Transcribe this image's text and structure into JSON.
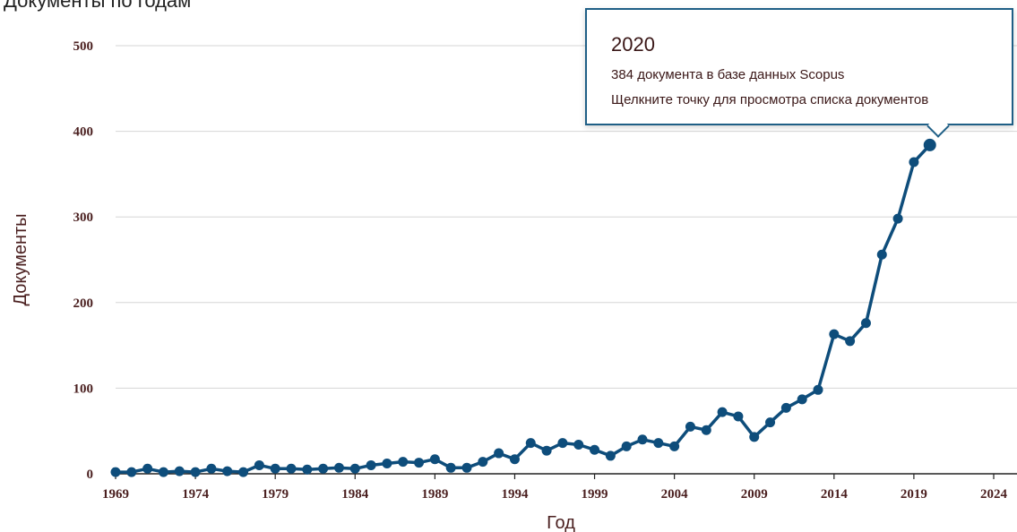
{
  "header": {
    "title": "Документы по годам"
  },
  "tooltip": {
    "year": "2020",
    "line1": "384 документа в базе данных Scopus",
    "line2": "Щелкните точку для просмотра списка документов"
  },
  "chart_data": {
    "type": "line",
    "title": "Документы по годам",
    "xlabel": "Год",
    "ylabel": "Документы",
    "xlim": [
      1969,
      2024
    ],
    "ylim": [
      0,
      500
    ],
    "xticks": [
      1969,
      1974,
      1979,
      1984,
      1989,
      1994,
      1999,
      2004,
      2009,
      2014,
      2019,
      2024
    ],
    "yticks": [
      0,
      100,
      200,
      300,
      400,
      500
    ],
    "grid": true,
    "highlight_index": 51,
    "series": [
      {
        "color": "#0e4d7b",
        "x": [
          1969,
          1970,
          1971,
          1972,
          1973,
          1974,
          1975,
          1976,
          1977,
          1978,
          1979,
          1980,
          1981,
          1982,
          1983,
          1984,
          1985,
          1986,
          1987,
          1988,
          1989,
          1990,
          1991,
          1992,
          1993,
          1994,
          1995,
          1996,
          1997,
          1998,
          1999,
          2000,
          2001,
          2002,
          2003,
          2004,
          2005,
          2006,
          2007,
          2008,
          2009,
          2010,
          2011,
          2012,
          2013,
          2014,
          2015,
          2016,
          2017,
          2018,
          2019,
          2020
        ],
        "values": [
          2,
          2,
          6,
          2,
          3,
          2,
          6,
          3,
          2,
          10,
          6,
          6,
          5,
          6,
          7,
          6,
          10,
          12,
          14,
          13,
          17,
          7,
          7,
          14,
          24,
          17,
          36,
          27,
          36,
          34,
          28,
          21,
          32,
          40,
          36,
          32,
          55,
          51,
          72,
          67,
          43,
          60,
          77,
          87,
          98,
          163,
          155,
          176,
          256,
          298,
          364,
          384
        ]
      }
    ]
  }
}
